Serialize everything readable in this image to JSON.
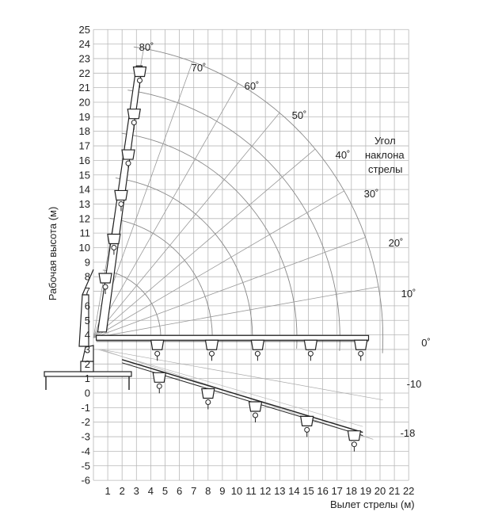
{
  "chart_data": {
    "type": "diagram",
    "xlabel": "Вылет стрелы (м)",
    "ylabel": "Рабочая высота (м)",
    "x_ticks": [
      "1",
      "2",
      "3",
      "4",
      "5",
      "6",
      "7",
      "8",
      "9",
      "10",
      "11",
      "12",
      "13",
      "14",
      "15",
      "16",
      "17",
      "18",
      "19",
      "20",
      "21",
      "22"
    ],
    "y_ticks": [
      "25",
      "24",
      "23",
      "22",
      "21",
      "20",
      "19",
      "18",
      "17",
      "16",
      "15",
      "14",
      "13",
      "12",
      "11",
      "10",
      "9",
      "8",
      "7",
      "6",
      "5",
      "4",
      "3",
      "2",
      "1",
      "0",
      "-1",
      "-2",
      "-3",
      "-4",
      "-5",
      "-6"
    ],
    "xlim": [
      0,
      22
    ],
    "ylim": [
      -6,
      25
    ],
    "grid": true,
    "legend_title_lines": [
      "Угол",
      "наклона",
      "стрелы"
    ],
    "angle_labels": [
      "80˚",
      "70˚",
      "60˚",
      "50˚",
      "40˚",
      "30˚",
      "20˚",
      "10˚",
      "0˚",
      "-10",
      "-18"
    ],
    "pivot": [
      0,
      3.8
    ],
    "arc_radii": [
      4.7,
      8.3,
      11.1,
      14.2,
      17.2,
      20.2
    ]
  }
}
